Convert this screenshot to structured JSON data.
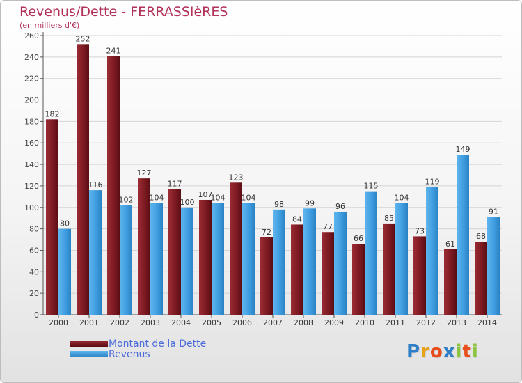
{
  "title": "Revenus/Dette - FERRASSIèRES",
  "subtitle": "(en milliers d'€)",
  "colors": {
    "dette": "#7d1a22",
    "revenus": "#3f9ddf",
    "title": "#b2325a",
    "legend_text": "#4a6bd8"
  },
  "legend": {
    "dette_label": "Montant de la Dette",
    "revenus_label": "Revenus"
  },
  "logo": {
    "letters": [
      "P",
      "r",
      "o",
      "x",
      "i",
      "t",
      "i"
    ],
    "colors": [
      "#2d7fc8",
      "#e8a21a",
      "#e84e1b",
      "#2d7fc8",
      "#8cc63f",
      "#e84e1b",
      "#8cc63f"
    ]
  },
  "chart_data": {
    "type": "bar",
    "title": "Revenus/Dette - FERRASSIèRES",
    "subtitle": "(en milliers d'€)",
    "xlabel": "",
    "ylabel": "",
    "ylim": [
      0,
      260
    ],
    "yticks": [
      0,
      20,
      40,
      60,
      80,
      100,
      120,
      140,
      160,
      180,
      200,
      220,
      240,
      260
    ],
    "grid": true,
    "legend_position": "bottom-left",
    "categories": [
      "2000",
      "2001",
      "2002",
      "2003",
      "2004",
      "2005",
      "2006",
      "2007",
      "2008",
      "2009",
      "2010",
      "2011",
      "2012",
      "2013",
      "2014"
    ],
    "series": [
      {
        "name": "Montant de la Dette",
        "values": [
          182,
          252,
          241,
          127,
          117,
          107,
          123,
          72,
          84,
          77,
          66,
          85,
          73,
          61,
          68
        ]
      },
      {
        "name": "Revenus",
        "values": [
          80,
          116,
          102,
          104,
          100,
          104,
          104,
          98,
          99,
          96,
          115,
          104,
          119,
          149,
          91
        ]
      }
    ]
  }
}
